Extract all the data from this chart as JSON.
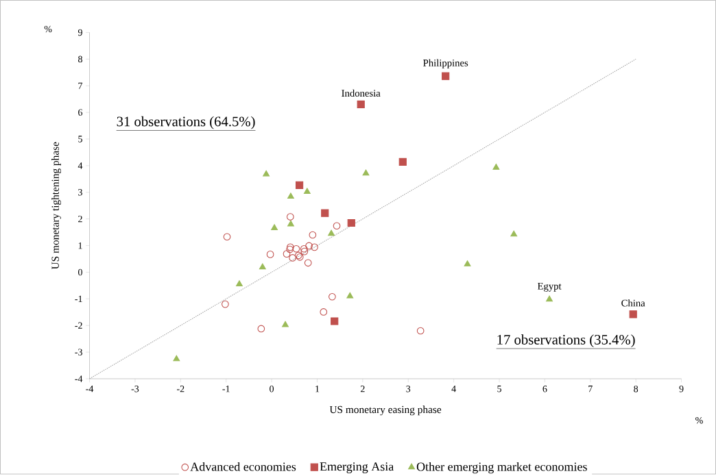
{
  "chart_data": {
    "type": "scatter",
    "xlabel": "US monetary easing phase",
    "ylabel": "US monetary tightening phase",
    "xlim": [
      -4,
      9
    ],
    "ylim": [
      -4,
      9
    ],
    "xticks": [
      -4,
      -3,
      -2,
      -1,
      0,
      1,
      2,
      3,
      4,
      5,
      6,
      7,
      8,
      9
    ],
    "yticks": [
      -4,
      -3,
      -2,
      -1,
      0,
      1,
      2,
      3,
      4,
      5,
      6,
      7,
      8,
      9
    ],
    "grid": false,
    "legend": "bottom",
    "series": [
      {
        "name": "Advanced economies",
        "color": "#c0504d",
        "marker": "circle",
        "x": [
          0.41,
          0.4,
          0.54,
          0.33,
          0.46,
          0.59,
          0.62,
          0.71,
          0.72,
          0.82,
          0.94,
          0.8,
          1.33,
          1.14,
          -0.23,
          -1.02,
          -0.98,
          -0.03,
          0.41,
          1.43,
          0.9,
          3.27
        ],
        "values": [
          0.94,
          0.86,
          0.88,
          0.69,
          0.54,
          0.63,
          0.57,
          0.88,
          0.78,
          0.99,
          0.94,
          0.35,
          -0.92,
          -1.49,
          -2.12,
          -1.2,
          1.33,
          0.67,
          2.08,
          1.74,
          1.4,
          -2.2
        ]
      },
      {
        "name": "Emerging Asia",
        "color": "#c0504d",
        "marker": "square",
        "x": [
          3.82,
          1.96,
          2.88,
          0.61,
          1.17,
          1.75,
          1.38,
          7.94
        ],
        "values": [
          7.36,
          6.3,
          4.14,
          3.27,
          2.22,
          1.85,
          -1.84,
          -1.58
        ]
      },
      {
        "name": "Other emerging market economies",
        "color": "#9bbb59",
        "marker": "triangle",
        "x": [
          -0.12,
          0.42,
          0.78,
          2.07,
          4.93,
          0.06,
          0.42,
          1.31,
          5.32,
          4.3,
          -0.2,
          -0.71,
          1.72,
          6.1,
          0.3,
          -2.09
        ],
        "values": [
          3.68,
          2.84,
          3.02,
          3.71,
          3.93,
          1.66,
          1.8,
          1.45,
          1.42,
          0.3,
          0.19,
          -0.45,
          -0.9,
          -1.02,
          -1.98,
          -3.26
        ]
      },
      {
        "type": "line",
        "color": "#a6a6a6",
        "line_style": "dotted",
        "marker": "none",
        "x": [
          -4,
          8
        ],
        "values": [
          -4,
          8
        ]
      }
    ],
    "annotations": [
      {
        "text": "Philippines",
        "x": 3.82,
        "y": 7.36
      },
      {
        "text": "Indonesia",
        "x": 1.96,
        "y": 6.3
      },
      {
        "text": "Egypt",
        "x": 6.1,
        "y": -1.02
      },
      {
        "text": "China",
        "x": 7.94,
        "y": -1.58
      },
      "31 observations (64.5%)",
      "17 observations (35.4%)",
      "%",
      "%"
    ]
  }
}
